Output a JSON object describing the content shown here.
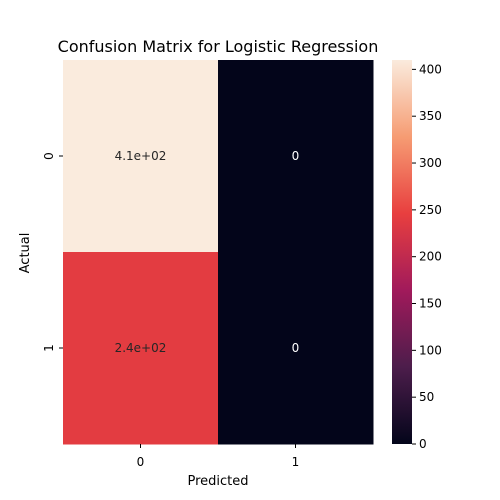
{
  "chart_data": {
    "type": "heatmap",
    "title": "Confusion Matrix for Logistic Regression",
    "xlabel": "Predicted",
    "ylabel": "Actual",
    "x_categories": [
      "0",
      "1"
    ],
    "y_categories": [
      "0",
      "1"
    ],
    "values": [
      [
        410,
        0
      ],
      [
        240,
        0
      ]
    ],
    "annotations": [
      [
        "4.1e+02",
        "0"
      ],
      [
        "2.4e+02",
        "0"
      ]
    ],
    "colorbar": {
      "min": 0,
      "max": 410,
      "ticks": [
        0,
        50,
        100,
        150,
        200,
        250,
        300,
        350,
        400
      ],
      "tick_labels": [
        "0",
        "50",
        "100",
        "150",
        "200",
        "250",
        "300",
        "350",
        "400"
      ]
    },
    "colormap_stops": [
      "#03051a",
      "#4c1d4b",
      "#a11a5b",
      "#e83f3f",
      "#f69c73",
      "#faebdd"
    ]
  }
}
